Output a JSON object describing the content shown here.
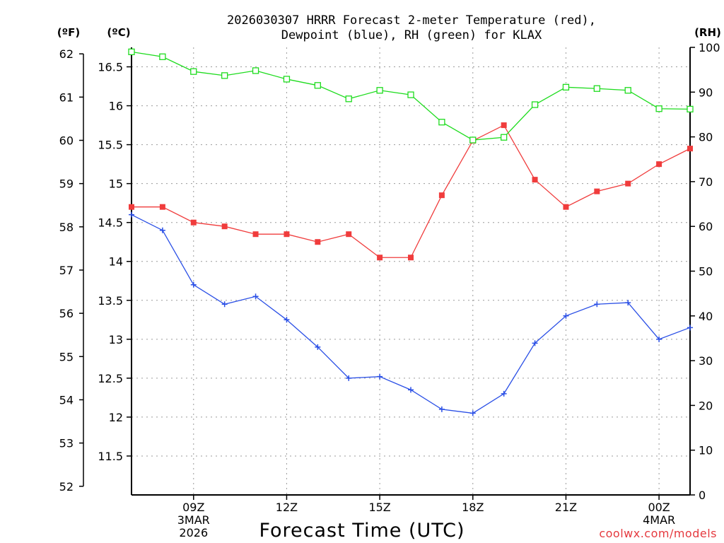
{
  "chart_data": {
    "type": "line",
    "title": "2026030307 HRRR Forecast 2-meter Temperature (red),",
    "subtitle": "Dewpoint (blue), RH (green) for KLAX",
    "xlabel": "Forecast Time (UTC)",
    "units": {
      "fahrenheit": "(ºF)",
      "celsius": "(ºC)",
      "rh": "(RH)"
    },
    "credit": "coolwx.com/models",
    "x": [
      7,
      8,
      9,
      10,
      11,
      12,
      13,
      14,
      15,
      16,
      17,
      18,
      19,
      20,
      21,
      22,
      23,
      24,
      25
    ],
    "xlim": [
      7,
      25
    ],
    "x_ticks": [
      {
        "x": 9,
        "label": "09Z",
        "date": "3MAR",
        "year": "2026"
      },
      {
        "x": 12,
        "label": "12Z"
      },
      {
        "x": 15,
        "label": "15Z"
      },
      {
        "x": 18,
        "label": "18Z"
      },
      {
        "x": 21,
        "label": "21Z"
      },
      {
        "x": 24,
        "label": "00Z",
        "date": "4MAR"
      }
    ],
    "y_celsius": {
      "lim": [
        11.0,
        16.75
      ],
      "ticks": [
        11.5,
        12,
        12.5,
        13,
        13.5,
        14,
        14.5,
        15,
        15.5,
        16,
        16.5
      ],
      "tick_labels": [
        "11.5",
        "12",
        "12.5",
        "13",
        "13.5",
        "14",
        "14.5",
        "15",
        "15.5",
        "16",
        "16.5"
      ]
    },
    "y_fahrenheit": {
      "ticks": [
        52,
        53,
        54,
        55,
        56,
        57,
        58,
        59,
        60,
        61,
        62
      ],
      "tick_labels": [
        "52",
        "53",
        "54",
        "55",
        "56",
        "57",
        "58",
        "59",
        "60",
        "61",
        "62"
      ]
    },
    "y_rh": {
      "lim": [
        0,
        100
      ],
      "ticks": [
        0,
        10,
        20,
        30,
        40,
        50,
        60,
        70,
        80,
        90,
        100
      ],
      "tick_labels": [
        "0",
        "10",
        "20",
        "30",
        "40",
        "50",
        "60",
        "70",
        "80",
        "90",
        "100"
      ]
    },
    "series": [
      {
        "name": "Temperature",
        "color": "#f03c3c",
        "marker": "filled-square",
        "axis": "celsius",
        "values": [
          14.7,
          14.7,
          14.5,
          14.45,
          14.35,
          14.35,
          14.25,
          14.35,
          14.05,
          14.05,
          14.85,
          15.55,
          15.75,
          15.05,
          14.7,
          14.9,
          15.0,
          15.25,
          15.45
        ]
      },
      {
        "name": "Dewpoint",
        "color": "#2a4fe6",
        "marker": "plus",
        "axis": "celsius",
        "values": [
          14.6,
          14.4,
          13.7,
          13.45,
          13.55,
          13.25,
          12.9,
          12.5,
          12.52,
          12.35,
          12.1,
          12.05,
          12.3,
          12.95,
          13.3,
          13.45,
          13.47,
          13.0,
          13.15
        ]
      },
      {
        "name": "RH",
        "color": "#1edc1e",
        "marker": "open-square",
        "axis": "rh",
        "values": [
          99,
          97.9,
          94.6,
          93.7,
          94.8,
          92.9,
          91.5,
          88.5,
          90.4,
          89.4,
          83.3,
          79.3,
          79.9,
          87.2,
          91.1,
          90.8,
          90.4,
          86.3,
          86.2
        ]
      }
    ]
  }
}
